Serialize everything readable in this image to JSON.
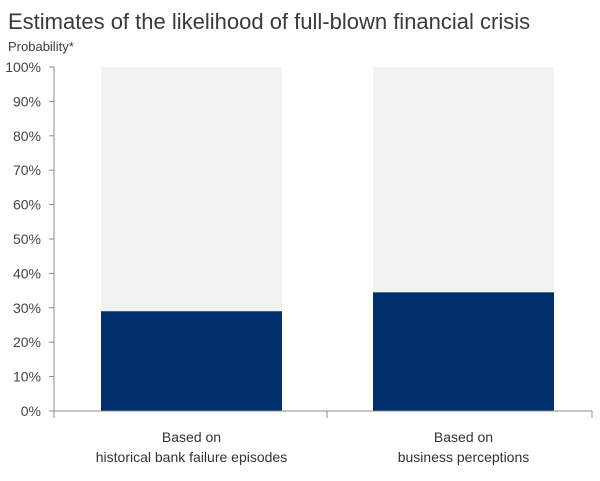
{
  "chart_data": {
    "type": "bar",
    "title": "Estimates of the likelihood of full-blown financial crisis",
    "subtitle": "Probability*",
    "categories": [
      [
        "Based on",
        "historical bank failure episodes"
      ],
      [
        "Based on",
        "business perceptions"
      ]
    ],
    "values": [
      29,
      34.5
    ],
    "ylim": [
      0,
      100
    ],
    "yticks": [
      "0%",
      "10%",
      "20%",
      "30%",
      "40%",
      "50%",
      "60%",
      "70%",
      "80%",
      "90%",
      "100%"
    ],
    "xlabel": "",
    "ylabel": "",
    "grid": false,
    "legend": "none",
    "colors": {
      "bar": "#002f6c",
      "background_bar": "#f2f2f2",
      "axis": "#8c8c8c",
      "text": "#3a3a3a"
    }
  }
}
